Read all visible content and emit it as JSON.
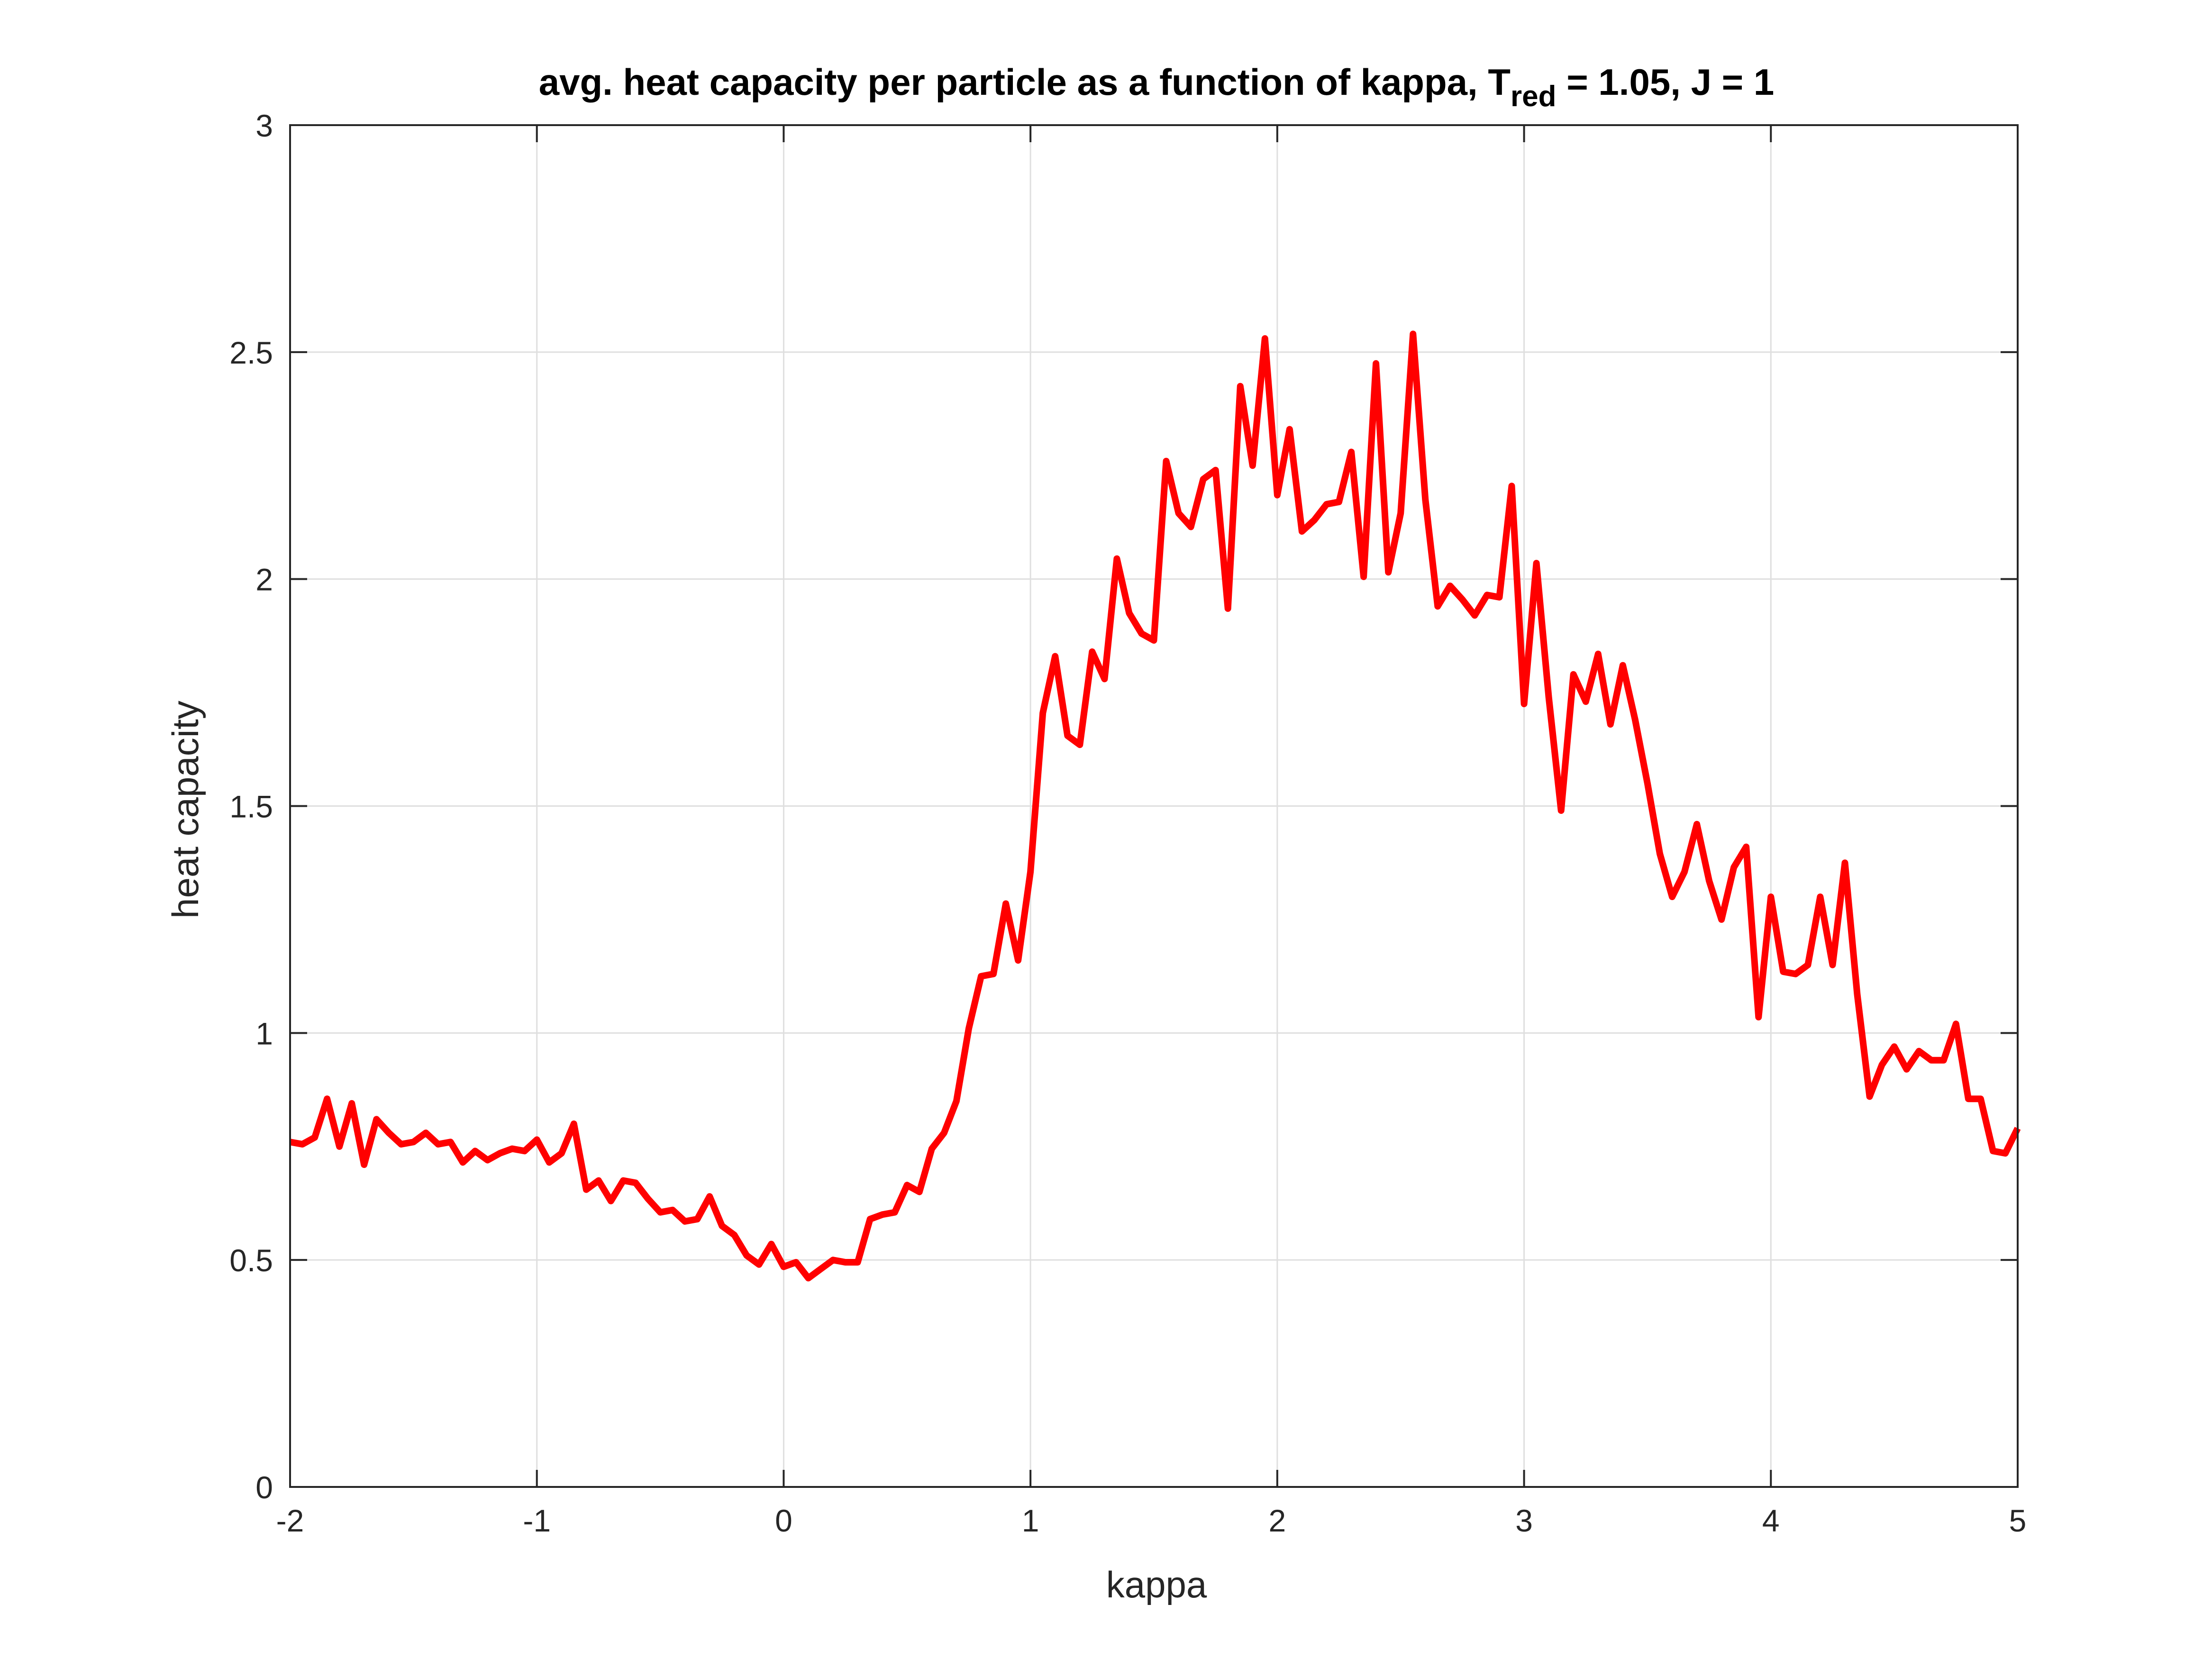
{
  "chart_data": {
    "type": "line",
    "title": "avg. heat capacity per particle as a function of kappa, T",
    "title_subscript": "red",
    "title_suffix": " = 1.05, J = 1",
    "xlabel": "kappa",
    "ylabel": "heat capacity",
    "xlim": [
      -2,
      5
    ],
    "ylim": [
      0,
      3
    ],
    "xticks": [
      "-2",
      "-1",
      "0",
      "1",
      "2",
      "3",
      "4",
      "5"
    ],
    "yticks": [
      "0",
      "0.5",
      "1",
      "1.5",
      "2",
      "2.5",
      "3"
    ],
    "grid": true,
    "series": [
      {
        "color": "#ff0000",
        "x": [
          -2.0,
          -1.95,
          -1.9,
          -1.85,
          -1.8,
          -1.75,
          -1.7,
          -1.65,
          -1.6,
          -1.55,
          -1.5,
          -1.45,
          -1.4,
          -1.35,
          -1.3,
          -1.25,
          -1.2,
          -1.15,
          -1.1,
          -1.05,
          -1.0,
          -0.95,
          -0.9,
          -0.85,
          -0.8,
          -0.75,
          -0.7,
          -0.65,
          -0.6,
          -0.55,
          -0.5,
          -0.45,
          -0.4,
          -0.35,
          -0.3,
          -0.25,
          -0.2,
          -0.15,
          -0.1,
          -0.05,
          0.0,
          0.05,
          0.1,
          0.15,
          0.2,
          0.25,
          0.3,
          0.35,
          0.4,
          0.45,
          0.5,
          0.55,
          0.6,
          0.65,
          0.7,
          0.75,
          0.8,
          0.85,
          0.9,
          0.95,
          1.0,
          1.05,
          1.1,
          1.15,
          1.2,
          1.25,
          1.3,
          1.35,
          1.4,
          1.45,
          1.5,
          1.55,
          1.6,
          1.65,
          1.7,
          1.75,
          1.8,
          1.85,
          1.9,
          1.95,
          2.0,
          2.05,
          2.1,
          2.15,
          2.2,
          2.25,
          2.3,
          2.35,
          2.4,
          2.45,
          2.5,
          2.55,
          2.6,
          2.65,
          2.7,
          2.75,
          2.8,
          2.85,
          2.9,
          2.95,
          3.0,
          3.05,
          3.1,
          3.15,
          3.2,
          3.25,
          3.3,
          3.35,
          3.4,
          3.45,
          3.5,
          3.55,
          3.6,
          3.65,
          3.7,
          3.75,
          3.8,
          3.85,
          3.9,
          3.95,
          4.0,
          4.05,
          4.1,
          4.15,
          4.2,
          4.25,
          4.3,
          4.35,
          4.4,
          4.45,
          4.5,
          4.55,
          4.6,
          4.65,
          4.7,
          4.75,
          4.8,
          4.85,
          4.9,
          4.95,
          5.0
        ],
        "y": [
          0.76,
          0.755,
          0.77,
          0.855,
          0.75,
          0.845,
          0.71,
          0.81,
          0.78,
          0.755,
          0.76,
          0.78,
          0.755,
          0.76,
          0.715,
          0.74,
          0.72,
          0.735,
          0.745,
          0.74,
          0.765,
          0.715,
          0.735,
          0.8,
          0.655,
          0.675,
          0.63,
          0.675,
          0.67,
          0.635,
          0.605,
          0.61,
          0.585,
          0.59,
          0.64,
          0.575,
          0.555,
          0.51,
          0.49,
          0.535,
          0.485,
          0.495,
          0.46,
          0.48,
          0.5,
          0.495,
          0.495,
          0.59,
          0.6,
          0.605,
          0.665,
          0.65,
          0.745,
          0.78,
          0.85,
          1.01,
          1.125,
          1.13,
          1.285,
          1.16,
          1.355,
          1.705,
          1.83,
          1.655,
          1.635,
          1.84,
          1.78,
          2.045,
          1.925,
          1.88,
          1.865,
          2.26,
          2.145,
          2.115,
          2.22,
          2.24,
          1.935,
          2.425,
          2.25,
          2.53,
          2.185,
          2.33,
          2.105,
          2.13,
          2.165,
          2.17,
          2.28,
          2.005,
          2.475,
          2.015,
          2.145,
          2.54,
          2.175,
          1.94,
          1.985,
          1.955,
          1.92,
          1.965,
          1.96,
          2.205,
          1.725,
          2.035,
          1.74,
          1.49,
          1.79,
          1.73,
          1.835,
          1.68,
          1.81,
          1.69,
          1.55,
          1.395,
          1.3,
          1.355,
          1.46,
          1.335,
          1.25,
          1.365,
          1.41,
          1.035,
          1.3,
          1.135,
          1.13,
          1.15,
          1.3,
          1.15,
          1.375,
          1.085,
          0.86,
          0.93,
          0.97,
          0.92,
          0.96,
          0.94,
          0.94,
          1.02,
          0.855,
          0.855,
          0.74,
          0.735,
          0.79
        ]
      }
    ]
  }
}
